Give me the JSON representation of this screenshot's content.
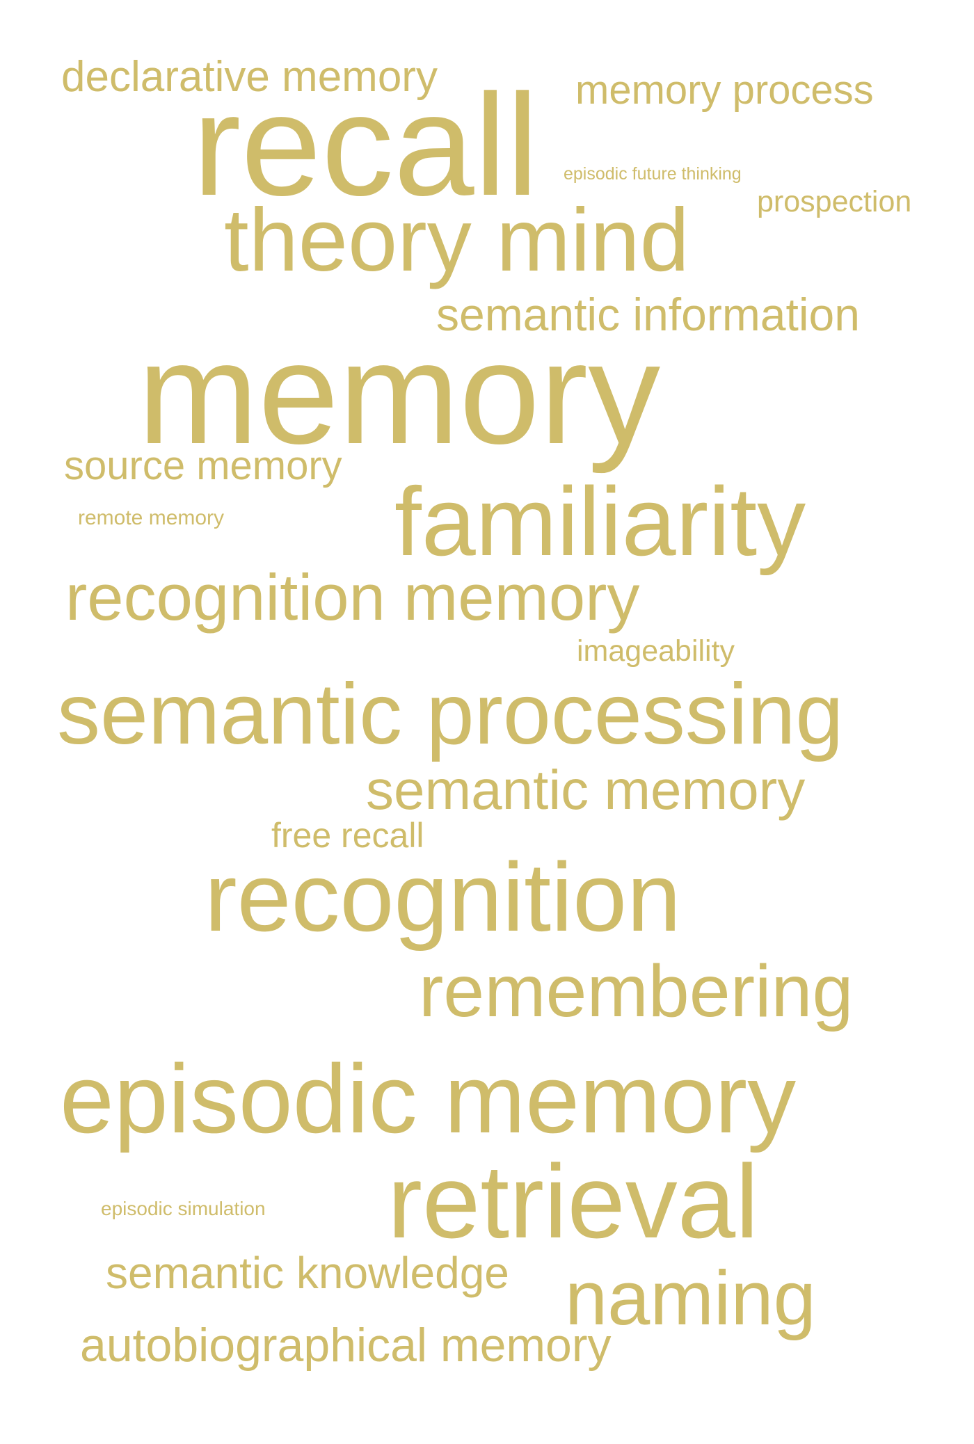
{
  "colors": {
    "background": "#ffffff",
    "word": "#cfbc6a"
  },
  "words": [
    {
      "text": "declarative memory"
    },
    {
      "text": "memory process"
    },
    {
      "text": "recall"
    },
    {
      "text": "episodic future thinking"
    },
    {
      "text": "prospection"
    },
    {
      "text": "theory mind"
    },
    {
      "text": "semantic information"
    },
    {
      "text": "memory"
    },
    {
      "text": "source memory"
    },
    {
      "text": "remote memory"
    },
    {
      "text": "familiarity"
    },
    {
      "text": "recognition memory"
    },
    {
      "text": "imageability"
    },
    {
      "text": "semantic processing"
    },
    {
      "text": "semantic memory"
    },
    {
      "text": "free recall"
    },
    {
      "text": "recognition"
    },
    {
      "text": "remembering"
    },
    {
      "text": "episodic memory"
    },
    {
      "text": "episodic simulation"
    },
    {
      "text": "retrieval"
    },
    {
      "text": "semantic knowledge"
    },
    {
      "text": "naming"
    },
    {
      "text": "autobiographical memory"
    }
  ]
}
